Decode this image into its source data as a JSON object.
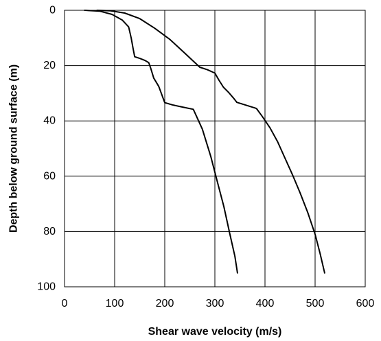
{
  "chart_data": {
    "type": "line",
    "title": "",
    "xlabel": "Shear wave velocity (m/s)",
    "ylabel": "Depth below ground surface (m)",
    "xlim": [
      0,
      600
    ],
    "ylim": [
      0,
      100
    ],
    "y_inverted": true,
    "x_axis_position": "top",
    "x_ticks": [
      0,
      100,
      200,
      300,
      400,
      500,
      600
    ],
    "x_tick_labels": [
      "0",
      "100",
      "200",
      "300",
      "400",
      "500",
      "600"
    ],
    "y_ticks": [
      0,
      20,
      40,
      60,
      80,
      100
    ],
    "y_tick_labels": [
      "0",
      "20",
      "40",
      "60",
      "80",
      "100"
    ],
    "grid": true,
    "legend": "none",
    "series": [
      {
        "color": "#000000",
        "points": [
          [
            40,
            0
          ],
          [
            70,
            0.3
          ],
          [
            95,
            1.5
          ],
          [
            115,
            3.5
          ],
          [
            128,
            6
          ],
          [
            133,
            10
          ],
          [
            137,
            14
          ],
          [
            140,
            16.8
          ],
          [
            150,
            17.4
          ],
          [
            160,
            18.1
          ],
          [
            168,
            18.9
          ],
          [
            172,
            21
          ],
          [
            178,
            24.5
          ],
          [
            188,
            27.5
          ],
          [
            200,
            33.4
          ],
          [
            215,
            34.2
          ],
          [
            235,
            35.0
          ],
          [
            257,
            35.8
          ],
          [
            275,
            43
          ],
          [
            292,
            53
          ],
          [
            305,
            62
          ],
          [
            318,
            71
          ],
          [
            330,
            81
          ],
          [
            340,
            89
          ],
          [
            345,
            95
          ]
        ]
      },
      {
        "color": "#000000",
        "points": [
          [
            65,
            0
          ],
          [
            92,
            0.2
          ],
          [
            120,
            1
          ],
          [
            150,
            3
          ],
          [
            180,
            6.5
          ],
          [
            210,
            10.5
          ],
          [
            240,
            15.5
          ],
          [
            270,
            20.6
          ],
          [
            285,
            21.5
          ],
          [
            300,
            22.7
          ],
          [
            308,
            25.2
          ],
          [
            317,
            27.8
          ],
          [
            328,
            29.8
          ],
          [
            337,
            31.7
          ],
          [
            344,
            33.3
          ],
          [
            360,
            34.2
          ],
          [
            383,
            35.5
          ],
          [
            395,
            38.5
          ],
          [
            410,
            42.5
          ],
          [
            425,
            47.5
          ],
          [
            440,
            53.5
          ],
          [
            455,
            59.5
          ],
          [
            470,
            66
          ],
          [
            485,
            73
          ],
          [
            500,
            81
          ],
          [
            510,
            88
          ],
          [
            519,
            95
          ]
        ]
      }
    ]
  }
}
